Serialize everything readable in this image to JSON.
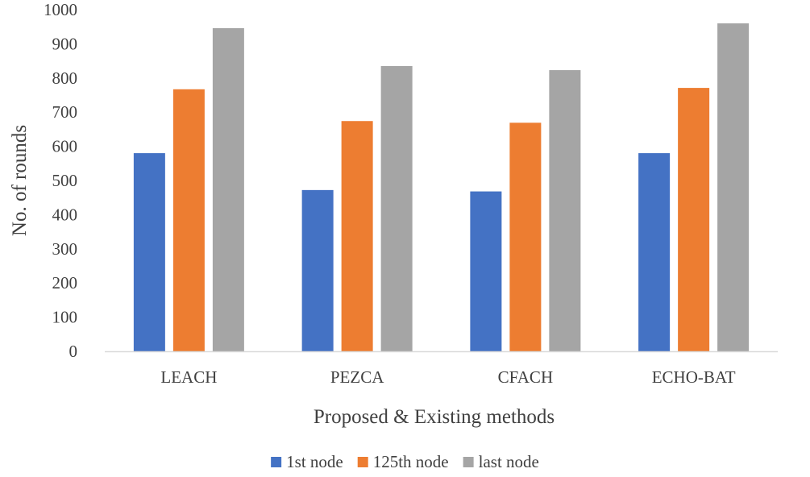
{
  "chart_data": {
    "type": "bar",
    "title": "",
    "xlabel": "Proposed & Existing methods",
    "ylabel": "No. of rounds",
    "ylim": [
      0,
      1000
    ],
    "ytick_step": 100,
    "yticks": [
      "0",
      "100",
      "200",
      "300",
      "400",
      "500",
      "600",
      "700",
      "800",
      "900",
      "1000"
    ],
    "grid": false,
    "legend_position": "bottom",
    "categories": [
      "LEACH",
      "PEZCA",
      "CFACH",
      "ECHO-BAT"
    ],
    "series": [
      {
        "name": "1st node",
        "color": "#4472c4",
        "values": [
          580,
          472,
          468,
          580
        ]
      },
      {
        "name": "125th node",
        "color": "#ed7d31",
        "values": [
          767,
          674,
          669,
          771
        ]
      },
      {
        "name": "last node",
        "color": "#a5a5a5",
        "values": [
          946,
          835,
          823,
          960
        ]
      }
    ],
    "axis_color": "#d9d9d9",
    "text_color": "#404040"
  }
}
